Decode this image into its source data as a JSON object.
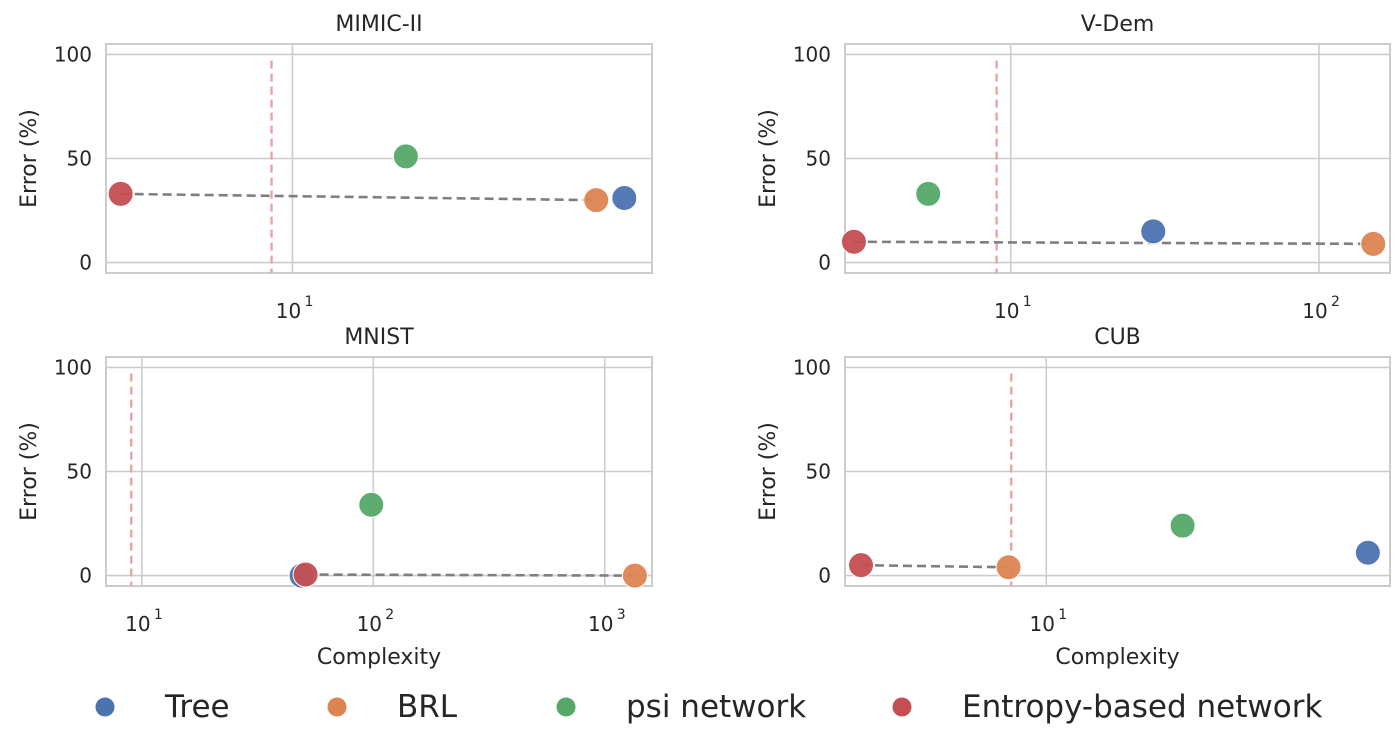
{
  "chart_data": [
    {
      "type": "scatter",
      "title": "MIMIC-II",
      "xlabel": "",
      "ylabel": "Error (%)",
      "xscale": "log",
      "xlim": [
        3.2,
        90
      ],
      "ylim": [
        -5,
        105
      ],
      "yticks": [
        0,
        50,
        100
      ],
      "xticks": [
        {
          "base": "10",
          "exp": "1",
          "value": 10
        }
      ],
      "threshold_x": 8.8,
      "series": [
        {
          "name": "Tree",
          "x": 76,
          "y": 31
        },
        {
          "name": "BRL",
          "x": 64,
          "y": 30
        },
        {
          "name": "psi network",
          "x": 20,
          "y": 51
        },
        {
          "name": "Entropy-based network",
          "x": 3.5,
          "y": 33
        }
      ],
      "trend": [
        [
          3.5,
          33
        ],
        [
          64,
          30
        ]
      ]
    },
    {
      "type": "scatter",
      "title": "V-Dem",
      "xlabel": "",
      "ylabel": "Error (%)",
      "xscale": "log",
      "xlim": [
        2.9,
        170
      ],
      "ylim": [
        -5,
        105
      ],
      "yticks": [
        0,
        50,
        100
      ],
      "xticks": [
        {
          "base": "10",
          "exp": "1",
          "value": 10
        },
        {
          "base": "10",
          "exp": "2",
          "value": 100
        }
      ],
      "threshold_x": 9,
      "series": [
        {
          "name": "Tree",
          "x": 29,
          "y": 15
        },
        {
          "name": "BRL",
          "x": 150,
          "y": 9
        },
        {
          "name": "psi network",
          "x": 5.4,
          "y": 33
        },
        {
          "name": "Entropy-based network",
          "x": 3.1,
          "y": 10
        }
      ],
      "trend": [
        [
          3.1,
          10
        ],
        [
          150,
          9
        ]
      ]
    },
    {
      "type": "scatter",
      "title": "MNIST",
      "xlabel": "Complexity",
      "ylabel": "Error (%)",
      "xscale": "log",
      "xlim": [
        7,
        1600
      ],
      "ylim": [
        -5,
        105
      ],
      "yticks": [
        0,
        50,
        100
      ],
      "xticks": [
        {
          "base": "10",
          "exp": "1",
          "value": 10
        },
        {
          "base": "10",
          "exp": "2",
          "value": 100
        },
        {
          "base": "10",
          "exp": "3",
          "value": 1000
        }
      ],
      "threshold_x": 9,
      "series": [
        {
          "name": "Tree",
          "x": 49,
          "y": 0
        },
        {
          "name": "BRL",
          "x": 1350,
          "y": 0
        },
        {
          "name": "psi network",
          "x": 98,
          "y": 34
        },
        {
          "name": "Entropy-based network",
          "x": 51,
          "y": 0.5
        }
      ],
      "trend": [
        [
          51,
          0.5
        ],
        [
          1350,
          0
        ]
      ]
    },
    {
      "type": "scatter",
      "title": "CUB",
      "xlabel": "Complexity",
      "ylabel": "Error (%)",
      "xscale": "log",
      "xlim": [
        4.2,
        44
      ],
      "ylim": [
        -5,
        105
      ],
      "yticks": [
        0,
        50,
        100
      ],
      "xticks": [
        {
          "base": "10",
          "exp": "1",
          "value": 10
        }
      ],
      "threshold_x": 8.6,
      "series": [
        {
          "name": "Tree",
          "x": 40,
          "y": 11
        },
        {
          "name": "BRL",
          "x": 8.5,
          "y": 4
        },
        {
          "name": "psi network",
          "x": 18,
          "y": 24
        },
        {
          "name": "Entropy-based network",
          "x": 4.5,
          "y": 5
        }
      ],
      "trend": [
        [
          4.5,
          5
        ],
        [
          8.5,
          4
        ]
      ]
    }
  ],
  "legend": {
    "placement": "bottom",
    "items": [
      {
        "label": "Tree",
        "color": "#4c72b0"
      },
      {
        "label": "BRL",
        "color": "#dd8452"
      },
      {
        "label": "psi network",
        "color": "#55a868"
      },
      {
        "label": "Entropy-based network",
        "color": "#c44e52"
      }
    ]
  },
  "colors": {
    "Tree": "#4c72b0",
    "BRL": "#dd8452",
    "psi network": "#55a868",
    "Entropy-based network": "#c44e52",
    "trend": "#7f7f7f",
    "threshold": "#e8a4a6",
    "grid": "#cccccc"
  }
}
